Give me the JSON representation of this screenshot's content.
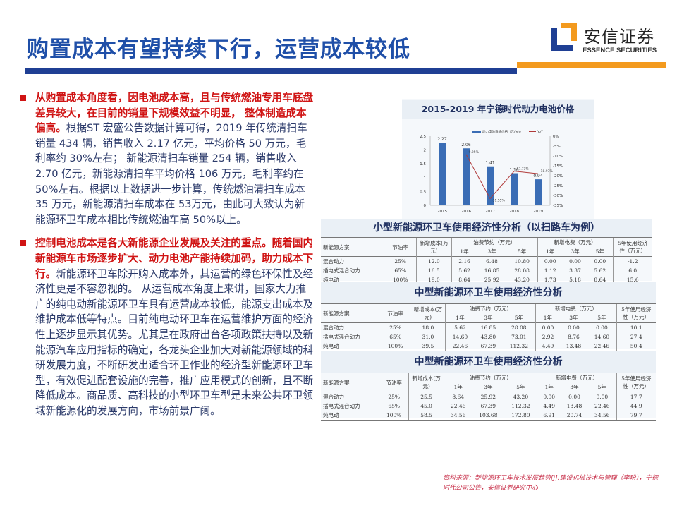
{
  "header": {
    "title": "购置成本有望持续下行，运营成本较低",
    "logo_cn": "安信证券",
    "logo_en": "ESSENCE SECURITIES",
    "colors": {
      "blue": "#1f3f94",
      "orange": "#f39a1e"
    }
  },
  "body": {
    "paragraphs": [
      {
        "highlight": "从购置成本角度看，因电池成本高，且与传统燃油专用车底盘差异较大，在目前的销量下规模效益不明显， 整体制造成本偏高。",
        "text": "根据ST 宏盛公告数据计算可得，2019 年传统清扫车销量 434 辆，销售收入 2.17 亿元，平均价格 50 万元，毛利率约 30%左右； 新能源清扫车销量 254 辆，销售收入 2.70 亿元，新能源清扫车平均价格 106 万元，毛利率约在 50%左右。根据以上数据进一步计算，传统燃油清扫车成本 35 万元，新能源清扫车成本在 53万元，由此可大致认为新能源环卫车成本相比传统燃油车高 50%以上。"
      },
      {
        "highlight": "控制电池成本是各大新能源企业发展及关注的重点。随着国内新能源车市场逐步扩大、动力电池产能持续加码，助力成本下行。",
        "text": "新能源环卫车除开购入成本外，其运营的绿色环保性及经济性更是不容忽视的。 从运营成本角度上来讲，国家大力推广的纯电动新能源环卫车具有运营成本较低，能源支出成本及维护成本低等特点。目前纯电动环卫车在运营维护方面的经济性上逐步显示其优势。尤其是在政府出台各项政策扶持以及新能源汽车应用指标的确定，各龙头企业加大对新能源领域的科研发展力度，不断研发出适合环卫作业的经济型新能源环卫车型，有效促进配套设施的完善，推广应用模式的创新，且不断降低成本。商品质、高科技的小型环卫车型是未来公共环卫领域新能源化的发展方向，市场前景广阔。"
      }
    ]
  },
  "chart_data": {
    "type": "bar+line",
    "title": "2015-2019 年宁德时代动力电池价格",
    "categories": [
      "2015",
      "2016",
      "2017",
      "2018",
      "2019"
    ],
    "series": [
      {
        "name": "动力电池系统价格（元/wh）",
        "type": "bar",
        "axis": "left",
        "values": [
          2.27,
          2.06,
          1.41,
          1.16,
          0.94
        ],
        "color": "#3a6db5"
      },
      {
        "name": "YoY",
        "type": "line",
        "axis": "right",
        "values": [
          null,
          -9.25,
          -31.55,
          -17.73,
          -18.97
        ],
        "labels": [
          "",
          "-9.25%",
          "-31.55%",
          "-17.73%",
          "-18.97%"
        ],
        "color": "#b03a3a"
      }
    ],
    "yleft": {
      "range": [
        0,
        2.5
      ],
      "ticks": [
        "0",
        "0.5",
        "1",
        "1.5",
        "2",
        "2.5"
      ]
    },
    "yright": {
      "range": [
        -35,
        0
      ],
      "ticks": [
        "0%",
        "-5%",
        "-10%",
        "-15%",
        "-20%",
        "-25%",
        "-30%",
        "-35%"
      ]
    },
    "legend": "top"
  },
  "tables": [
    {
      "title": "小型新能源环卫车使用经济性分析（以扫路车为例）",
      "rows": [
        [
          "混合动力",
          "25%",
          "12.0",
          "2.16",
          "6.48",
          "10.80",
          "0.00",
          "0.00",
          "0.00",
          "-1.2"
        ],
        [
          "插电式混合动力",
          "65%",
          "16.5",
          "5.62",
          "16.85",
          "28.08",
          "1.12",
          "3.37",
          "5.62",
          "6.0"
        ],
        [
          "纯电动",
          "100%",
          "19.0",
          "8.64",
          "25.92",
          "43.20",
          "1.73",
          "5.18",
          "8.64",
          "15.6"
        ]
      ]
    },
    {
      "title": "中型新能源环卫车使用经济性分析",
      "rows": [
        [
          "混合动力",
          "25%",
          "18.0",
          "5.62",
          "16.85",
          "28.08",
          "0.00",
          "0.00",
          "0.00",
          "10.1"
        ],
        [
          "插电式混合动力",
          "65%",
          "31.0",
          "14.60",
          "43.80",
          "73.01",
          "2.92",
          "8.76",
          "14.60",
          "27.4"
        ],
        [
          "纯电动",
          "100%",
          "39.5",
          "22.46",
          "67.39",
          "112.32",
          "4.49",
          "13.48",
          "22.46",
          "50.4"
        ]
      ]
    },
    {
      "title": "中型新能源环卫车使用经济性分析",
      "rows": [
        [
          "混合动力",
          "25%",
          "25.5",
          "8.64",
          "25.92",
          "43.20",
          "0.00",
          "0.00",
          "0.00",
          "17.7"
        ],
        [
          "插电式混合动力",
          "65%",
          "45.0",
          "22.46",
          "67.39",
          "112.32",
          "4.49",
          "13.48",
          "22.46",
          "44.9"
        ],
        [
          "纯电动",
          "100%",
          "58.5",
          "34.56",
          "103.68",
          "172.80",
          "6.91",
          "20.74",
          "34.56",
          "79.7"
        ]
      ]
    }
  ],
  "table_headers": {
    "scheme": "新能源方案",
    "saving_rate": "节油率",
    "added_cost": "新增成本(万元)",
    "fuel_saving": "油费节约（万元）",
    "added_elec": "新增电费（万元）",
    "econ5": "5年使用经济性（万元）",
    "y1": "1年",
    "y3": "3年",
    "y5": "5年"
  },
  "footer": {
    "source": "资料来源：新能源环卫车技术发展趋势[J].建设机械技术与管理（李玢），宁德时代公司公告，安信证券研究中心"
  }
}
